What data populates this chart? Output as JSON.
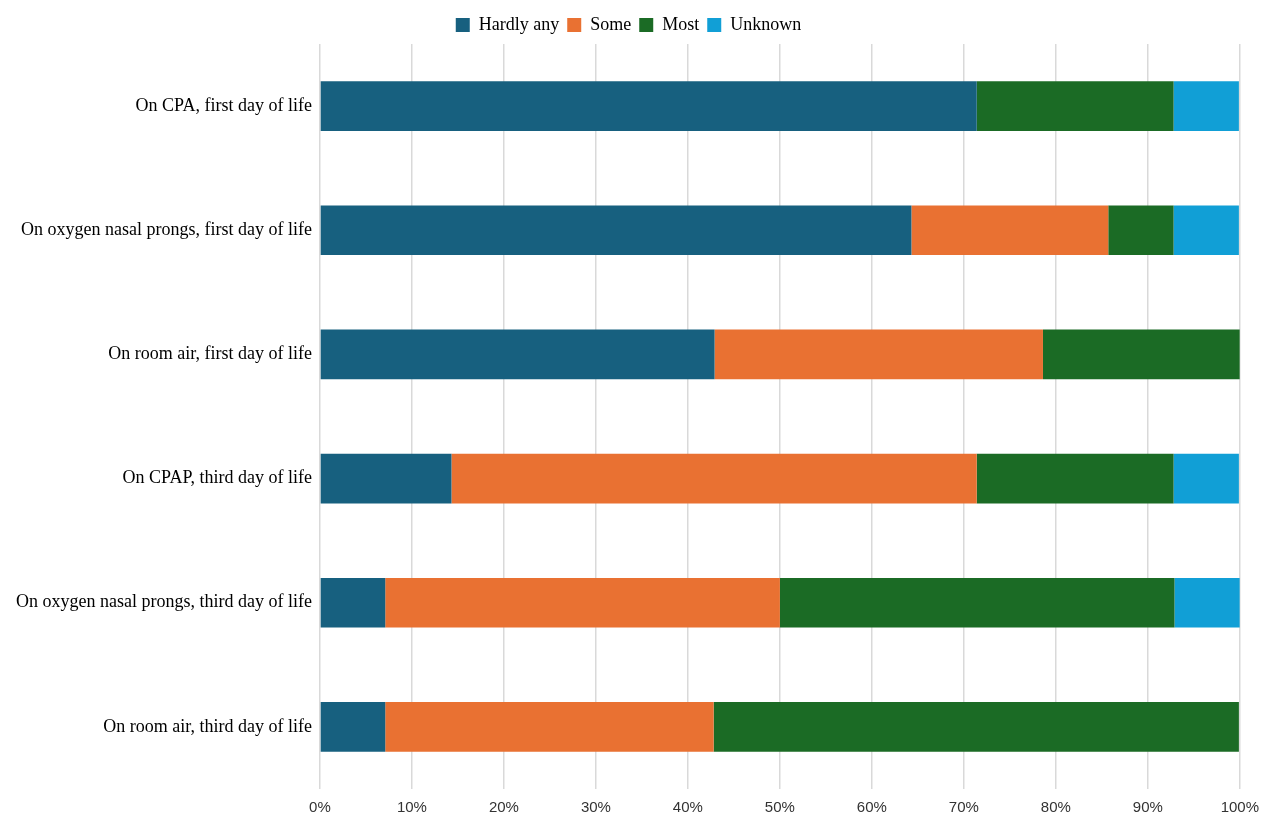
{
  "chart_data": {
    "type": "bar",
    "orientation": "horizontal",
    "stacked": true,
    "categories": [
      "On CPA, first day of life",
      "On oxygen nasal prongs, first day of life",
      "On room air, first day of life",
      "On CPAP, third day of life",
      "On oxygen nasal prongs, third day of life",
      "On room air, third day of life"
    ],
    "series": [
      {
        "name": "Hardly any",
        "color": "#17607f",
        "values": [
          71.4,
          64.3,
          42.9,
          14.3,
          7.1,
          7.1
        ]
      },
      {
        "name": "Some",
        "color": "#e97132",
        "values": [
          0,
          21.4,
          35.7,
          57.1,
          42.9,
          35.7
        ]
      },
      {
        "name": "Most",
        "color": "#1b6b25",
        "values": [
          21.4,
          7.1,
          21.4,
          21.4,
          42.9,
          57.1
        ]
      },
      {
        "name": "Unknown",
        "color": "#119fd6",
        "values": [
          7.1,
          7.1,
          0,
          7.1,
          7.1,
          0
        ]
      }
    ],
    "xlim": [
      0,
      100
    ],
    "xticks": [
      {
        "value": 0,
        "label": "0%"
      },
      {
        "value": 10,
        "label": "10%"
      },
      {
        "value": 20,
        "label": "20%"
      },
      {
        "value": 30,
        "label": "30%"
      },
      {
        "value": 40,
        "label": "40%"
      },
      {
        "value": 50,
        "label": "50%"
      },
      {
        "value": 60,
        "label": "60%"
      },
      {
        "value": 70,
        "label": "70%"
      },
      {
        "value": 80,
        "label": "80%"
      },
      {
        "value": 90,
        "label": "90%"
      },
      {
        "value": 100,
        "label": "100%"
      }
    ],
    "grid": "x",
    "legend": "top"
  }
}
